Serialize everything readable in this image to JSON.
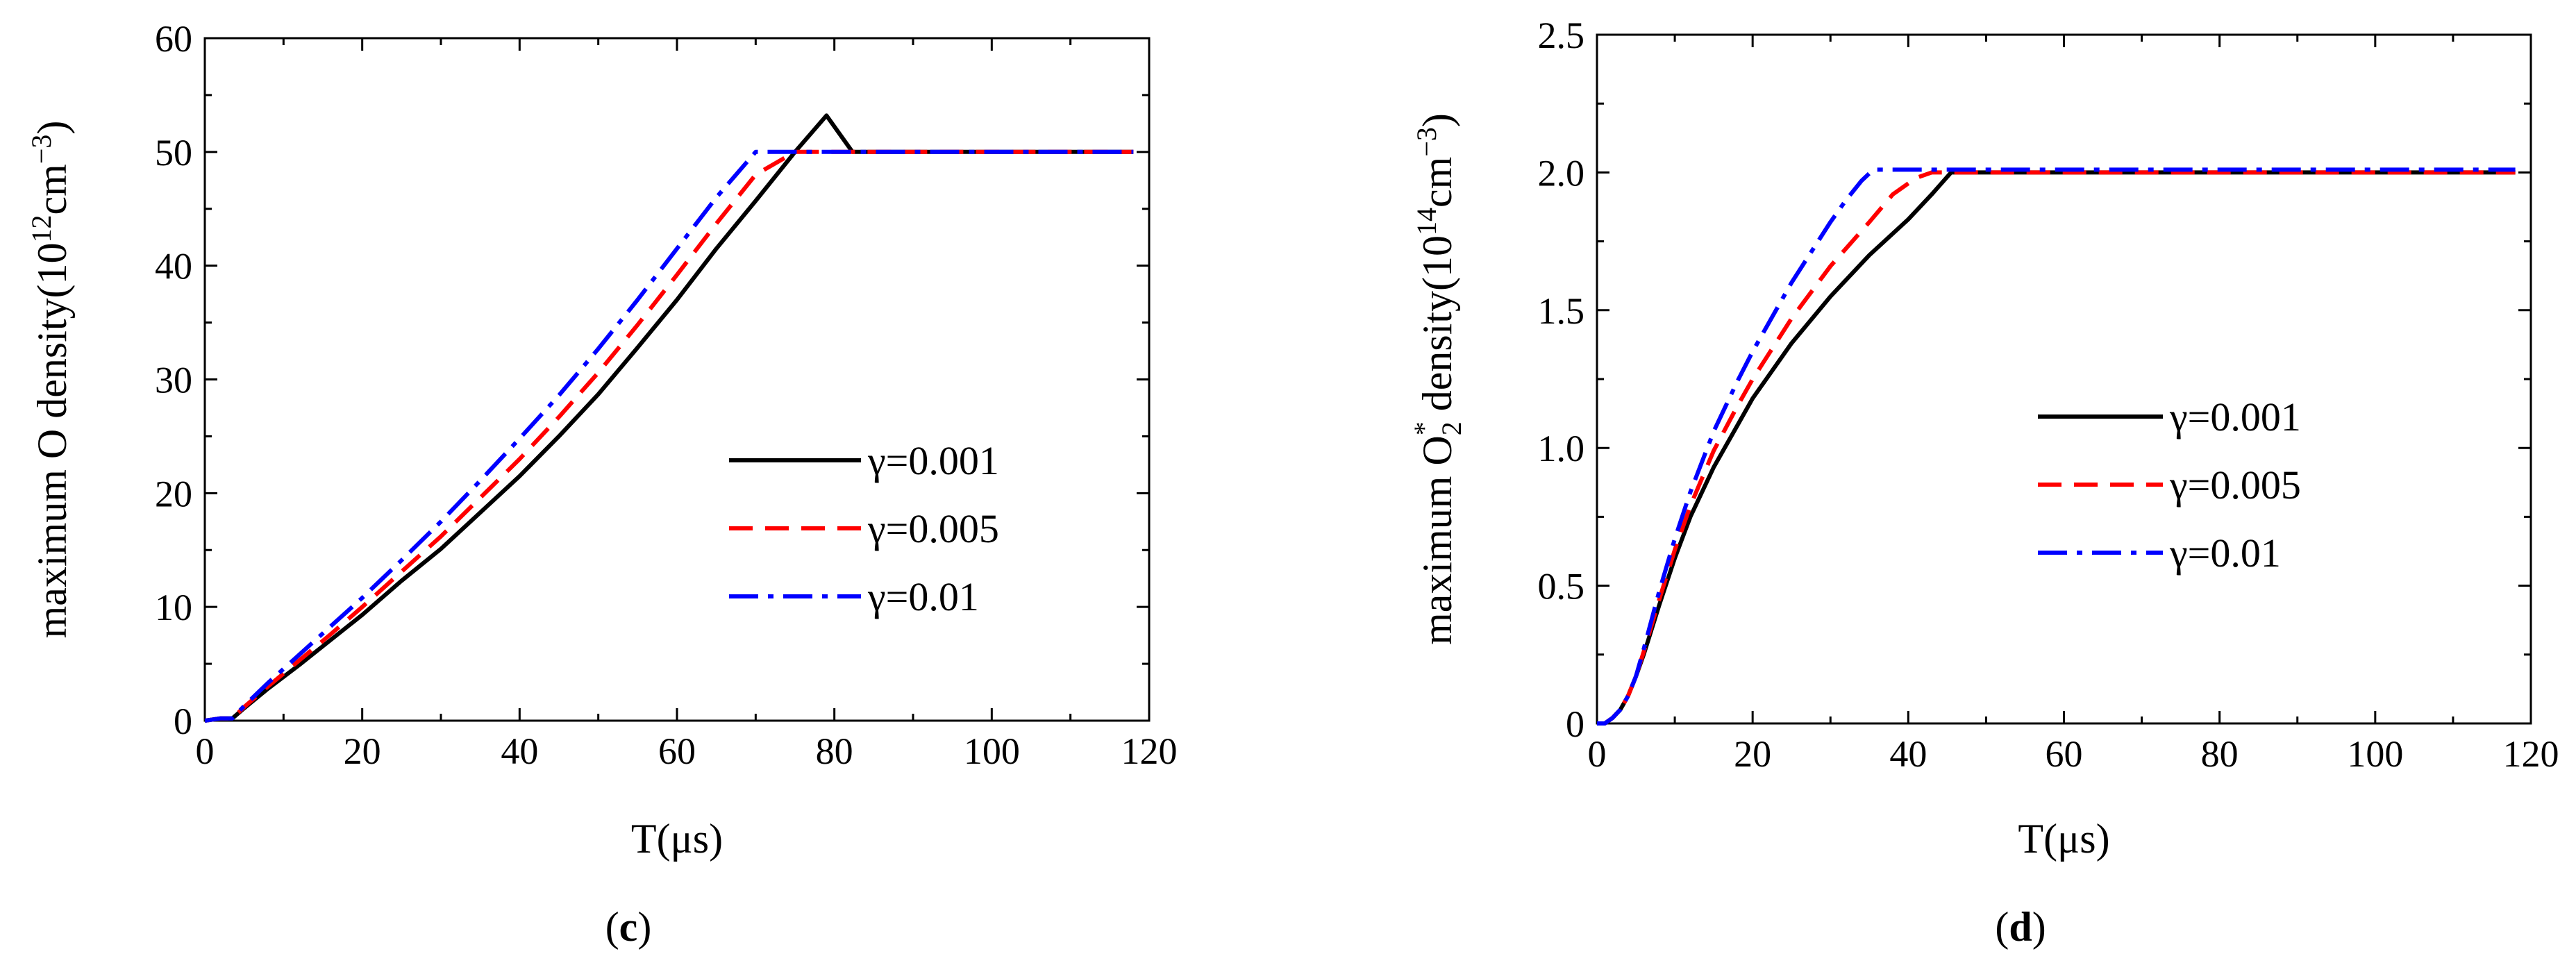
{
  "chart_data": [
    {
      "type": "line",
      "panel_label_prefix": "(",
      "panel_label_letter": "c",
      "panel_label_suffix": ")",
      "xlabel": "T(μs)",
      "ylabel_prefix": "maximum O density(10",
      "ylabel_exp1": "12",
      "ylabel_mid": "cm",
      "ylabel_exp2": "−3",
      "ylabel_suffix": ")",
      "xlim": [
        0,
        120
      ],
      "ylim": [
        0,
        60
      ],
      "x_ticks": [
        0,
        20,
        40,
        60,
        80,
        100,
        120
      ],
      "x_tick_labels": [
        "0",
        "20",
        "40",
        "60",
        "80",
        "100",
        "120"
      ],
      "y_ticks": [
        0,
        10,
        20,
        30,
        40,
        50,
        60
      ],
      "y_tick_labels": [
        "0",
        "10",
        "20",
        "30",
        "40",
        "50",
        "60"
      ],
      "legend_position": "center-right",
      "series": [
        {
          "name": "γ=0.001",
          "color": "#000000",
          "dash": "solid",
          "x": [
            0,
            2,
            3.5,
            5,
            8,
            12,
            16,
            20,
            25,
            30,
            35,
            40,
            45,
            50,
            55,
            60,
            65,
            70,
            75,
            79,
            82.3,
            90,
            100,
            110,
            118
          ],
          "y": [
            0,
            0.2,
            0.2,
            1.1,
            2.8,
            4.9,
            7.1,
            9.3,
            12.3,
            15.1,
            18.3,
            21.5,
            25.0,
            28.7,
            32.8,
            37.0,
            41.5,
            45.7,
            50.0,
            53.2,
            50.0,
            50.0,
            50.0,
            50.0,
            50.0
          ]
        },
        {
          "name": "γ=0.005",
          "color": "#ff0000",
          "dash": "dash",
          "x": [
            0,
            2,
            3.5,
            5,
            8,
            12,
            16,
            20,
            25,
            30,
            35,
            40,
            45,
            50,
            55,
            60,
            65,
            70,
            75,
            80.5,
            90,
            100,
            110,
            118
          ],
          "y": [
            0,
            0.2,
            0.2,
            1.2,
            3.0,
            5.3,
            7.6,
            10.0,
            13.1,
            16.2,
            19.6,
            23.0,
            26.7,
            30.6,
            34.8,
            39.2,
            43.7,
            48.0,
            50.0,
            50.0,
            50.0,
            50.0,
            50.0,
            50.0
          ]
        },
        {
          "name": "γ=0.01",
          "color": "#0000ff",
          "dash": "dashdot",
          "x": [
            0,
            2,
            3.5,
            5,
            8,
            12,
            16,
            20,
            25,
            30,
            35,
            40,
            45,
            50,
            55,
            60,
            65,
            70,
            75,
            78.5,
            90,
            100,
            110,
            118
          ],
          "y": [
            0,
            0.2,
            0.2,
            1.3,
            3.3,
            5.8,
            8.3,
            10.8,
            14.1,
            17.5,
            21.1,
            24.8,
            28.6,
            32.7,
            37.0,
            41.5,
            46.0,
            50.0,
            50.0,
            50.0,
            50.0,
            50.0,
            50.0,
            50.0
          ]
        }
      ]
    },
    {
      "type": "line",
      "panel_label_prefix": "(",
      "panel_label_letter": "d",
      "panel_label_suffix": ")",
      "xlabel": "T(μs)",
      "ylabel_prefix": "maximum O",
      "ylabel_sub": "2",
      "ylabel_sup_star": "*",
      "ylabel_mid1": " density(10",
      "ylabel_exp1": "14",
      "ylabel_mid2": "cm",
      "ylabel_exp2": "−3",
      "ylabel_suffix": ")",
      "xlim": [
        0,
        120
      ],
      "ylim": [
        0,
        2.5
      ],
      "x_ticks": [
        0,
        20,
        40,
        60,
        80,
        100,
        120
      ],
      "x_tick_labels": [
        "0",
        "20",
        "40",
        "60",
        "80",
        "100",
        "120"
      ],
      "y_ticks": [
        0,
        0.5,
        1.0,
        1.5,
        2.0,
        2.5
      ],
      "y_tick_labels": [
        "0",
        "0.5",
        "1.0",
        "1.5",
        "2.0",
        "2.5"
      ],
      "legend_position": "center-right",
      "series": [
        {
          "name": "γ=0.001",
          "color": "#000000",
          "dash": "solid",
          "x": [
            0,
            1,
            2,
            3,
            4,
            5,
            6,
            8,
            10,
            12,
            15,
            18,
            20,
            25,
            30,
            35,
            40,
            43,
            45.5,
            60,
            80,
            100,
            118
          ],
          "y": [
            0,
            0,
            0.02,
            0.05,
            0.1,
            0.17,
            0.25,
            0.43,
            0.6,
            0.75,
            0.93,
            1.08,
            1.18,
            1.38,
            1.55,
            1.7,
            1.83,
            1.92,
            2.0,
            2.0,
            2.0,
            2.0,
            2.0
          ]
        },
        {
          "name": "γ=0.005",
          "color": "#ff0000",
          "dash": "dash",
          "x": [
            0,
            1,
            2,
            3,
            4,
            5,
            6,
            8,
            10,
            12,
            15,
            18,
            20,
            25,
            30,
            35,
            38,
            41,
            43,
            60,
            80,
            100,
            118
          ],
          "y": [
            0,
            0,
            0.02,
            0.05,
            0.1,
            0.17,
            0.26,
            0.45,
            0.63,
            0.79,
            0.99,
            1.15,
            1.25,
            1.47,
            1.66,
            1.82,
            1.92,
            1.98,
            2.0,
            2.0,
            2.0,
            2.0,
            2.0
          ]
        },
        {
          "name": "γ=0.01",
          "color": "#0000ff",
          "dash": "dashdot",
          "x": [
            0,
            1,
            2,
            3,
            4,
            5,
            6,
            8,
            10,
            12,
            15,
            18,
            20,
            25,
            30,
            32,
            34,
            35.5,
            40,
            60,
            80,
            100,
            118
          ],
          "y": [
            0,
            0,
            0.02,
            0.05,
            0.1,
            0.17,
            0.27,
            0.48,
            0.67,
            0.84,
            1.06,
            1.24,
            1.35,
            1.6,
            1.82,
            1.9,
            1.97,
            2.01,
            2.01,
            2.01,
            2.01,
            2.01,
            2.01
          ]
        }
      ]
    }
  ]
}
